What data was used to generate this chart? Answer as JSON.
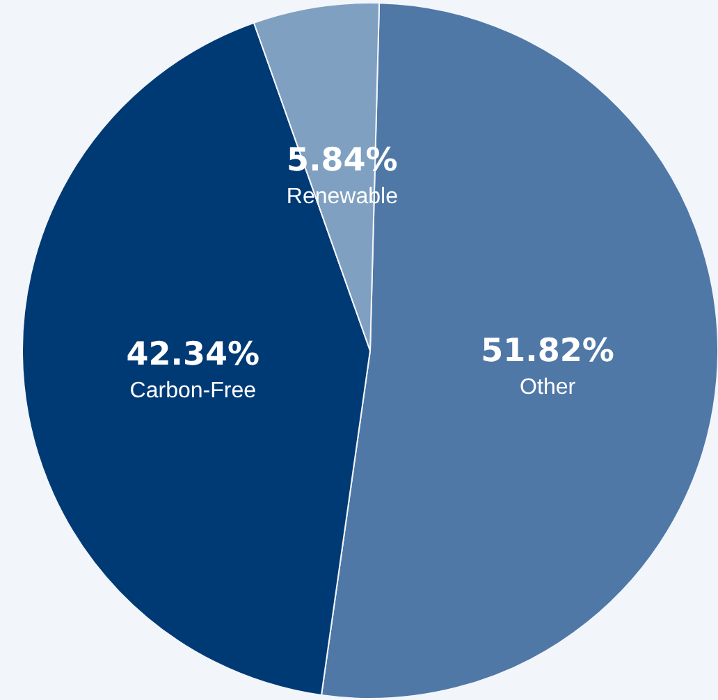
{
  "chart_data": {
    "type": "pie",
    "categories": [
      "Other",
      "Carbon-Free",
      "Renewable"
    ],
    "values": [
      51.82,
      42.34,
      5.84
    ],
    "colors": [
      "#4f78a6",
      "#003a75",
      "#7fa0c0"
    ],
    "value_labels": [
      "51.82%",
      "42.34%",
      "5.84%"
    ],
    "legend": false
  }
}
